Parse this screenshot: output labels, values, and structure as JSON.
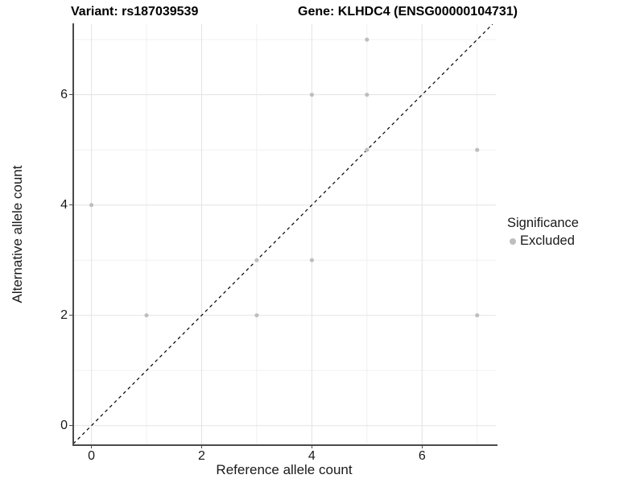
{
  "titles": {
    "variant": "Variant: rs187039539",
    "gene": "Gene: KLHDC4 (ENSG00000104731)"
  },
  "chart_data": {
    "type": "scatter",
    "title_left": "Variant: rs187039539",
    "title_right": "Gene: KLHDC4 (ENSG00000104731)",
    "xlabel": "Reference allele count",
    "ylabel": "Alternative allele count",
    "points": [
      {
        "x": 0,
        "y": 4
      },
      {
        "x": 1,
        "y": 2
      },
      {
        "x": 3,
        "y": 2
      },
      {
        "x": 3,
        "y": 3
      },
      {
        "x": 4,
        "y": 3
      },
      {
        "x": 4,
        "y": 6
      },
      {
        "x": 5,
        "y": 5
      },
      {
        "x": 5,
        "y": 6
      },
      {
        "x": 5,
        "y": 7
      },
      {
        "x": 7,
        "y": 2
      },
      {
        "x": 7,
        "y": 5
      }
    ],
    "xlim": [
      -0.33,
      7.34
    ],
    "ylim": [
      -0.34,
      7.28
    ],
    "x_ticks": [
      0,
      2,
      4,
      6
    ],
    "y_ticks": [
      0,
      2,
      4,
      6
    ],
    "x_minor_ticks": [
      1,
      3,
      5,
      7
    ],
    "y_minor_ticks": [
      1,
      3,
      5,
      7
    ],
    "grid": true,
    "identity_line": {
      "slope": 1,
      "intercept": 0,
      "style": "dashed",
      "color": "#000000"
    },
    "legend": {
      "title": "Significance",
      "position": "right",
      "items": [
        {
          "label": "Excluded",
          "color": "#bebebe"
        }
      ]
    },
    "point_color": "#bebebe",
    "point_radius": 2.6,
    "colors": {
      "grid_major": "#e3e3e3",
      "grid_minor": "#f0f0f0",
      "axis_line": "#4a4a4a",
      "text": "#1a1a1a"
    }
  }
}
